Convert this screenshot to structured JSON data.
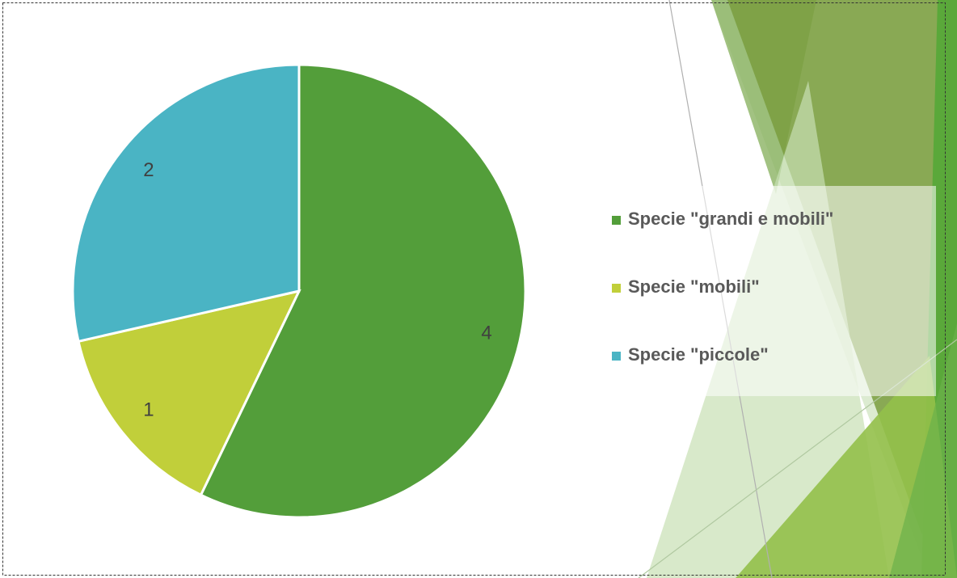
{
  "chart_data": {
    "type": "pie",
    "categories": [
      "Specie \"grandi e mobili\"",
      "Specie \"mobili\"",
      "Specie \"piccole\""
    ],
    "values": [
      4,
      1,
      2
    ],
    "colors": [
      "#539e3a",
      "#c1cf3a",
      "#4ab4c4"
    ],
    "legend": "right"
  }
}
